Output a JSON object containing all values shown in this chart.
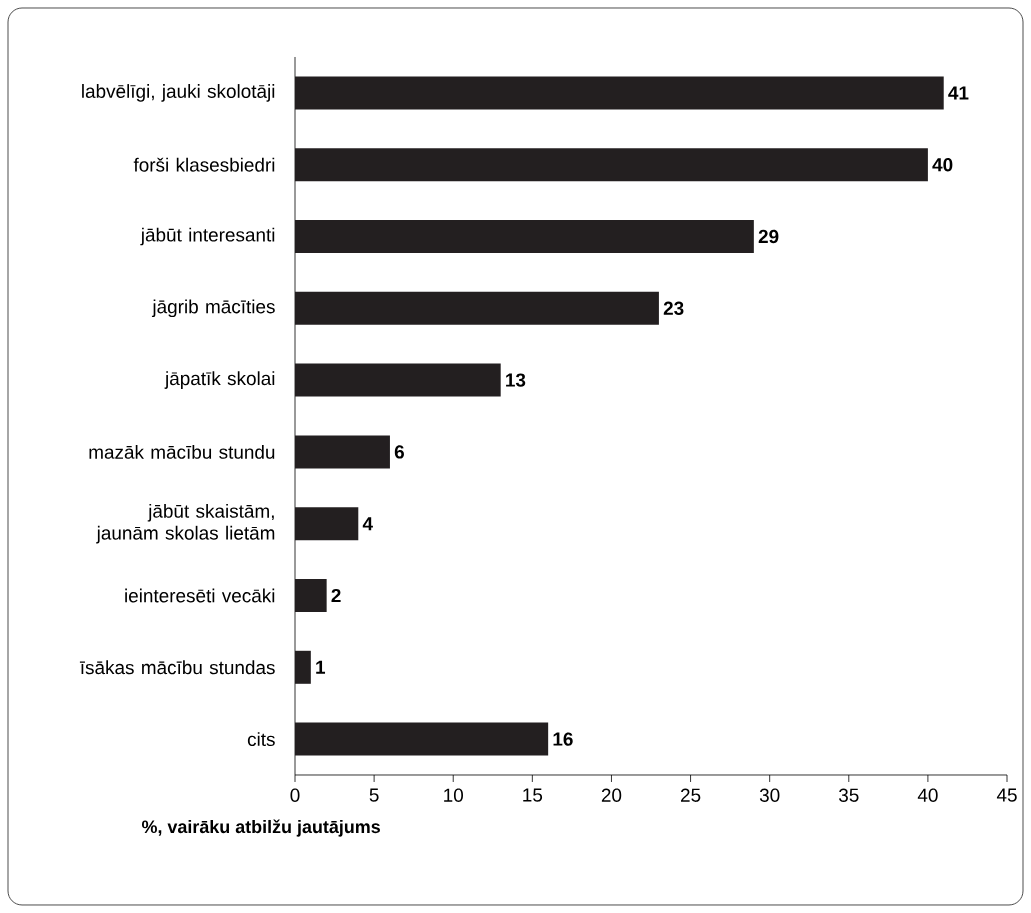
{
  "chart_data": {
    "type": "bar",
    "orientation": "horizontal",
    "categories": [
      "labvēlīgi, jauki skolotāji",
      "forši klasesbiedri",
      "jābūt interesanti",
      "jāgrib mācīties",
      "jāpatīk skolai",
      "mazāk mācību stundu",
      "jābūt skaistām, jaunām skolas lietām",
      "ieinteresēti vecāki",
      "īsākas mācību stundas",
      "cits"
    ],
    "values": [
      41,
      40,
      29,
      23,
      13,
      6,
      4,
      2,
      1,
      16
    ],
    "color": "#231f20",
    "xlim": [
      0,
      45
    ],
    "xticks": [
      0,
      5,
      10,
      15,
      20,
      25,
      30,
      35,
      40,
      45
    ],
    "xlabel": "%, vairāku atbilžu jautājums",
    "data_labels": true
  }
}
